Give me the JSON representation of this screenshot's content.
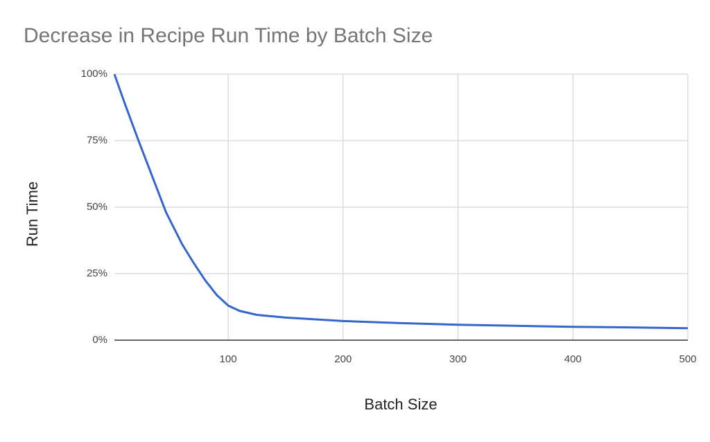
{
  "chart_data": {
    "type": "line",
    "title": "Decrease in Recipe Run Time by Batch Size",
    "x_label": "Batch Size",
    "y_label": "Run Time",
    "x": [
      1,
      10,
      22,
      30,
      46,
      60,
      70,
      80,
      90,
      100,
      110,
      125,
      150,
      200,
      250,
      300,
      350,
      400,
      450,
      500
    ],
    "series": [
      {
        "name": "Run Time",
        "color": "#3366cc",
        "values": [
          100,
          89,
          75,
          66,
          48,
          36,
          29,
          22.5,
          17,
          13,
          11,
          9.5,
          8.5,
          7.2,
          6.4,
          5.8,
          5.4,
          5,
          4.8,
          4.5
        ]
      }
    ],
    "xlim": [
      1,
      500
    ],
    "xticks": [
      100,
      200,
      300,
      400,
      500
    ],
    "ylim": [
      0,
      100
    ],
    "yticks": [
      {
        "value": 0,
        "label": "0%"
      },
      {
        "value": 25,
        "label": "25%"
      },
      {
        "value": 50,
        "label": "50%"
      },
      {
        "value": 75,
        "label": "75%"
      },
      {
        "value": 100,
        "label": "100%"
      }
    ],
    "grid": true
  }
}
